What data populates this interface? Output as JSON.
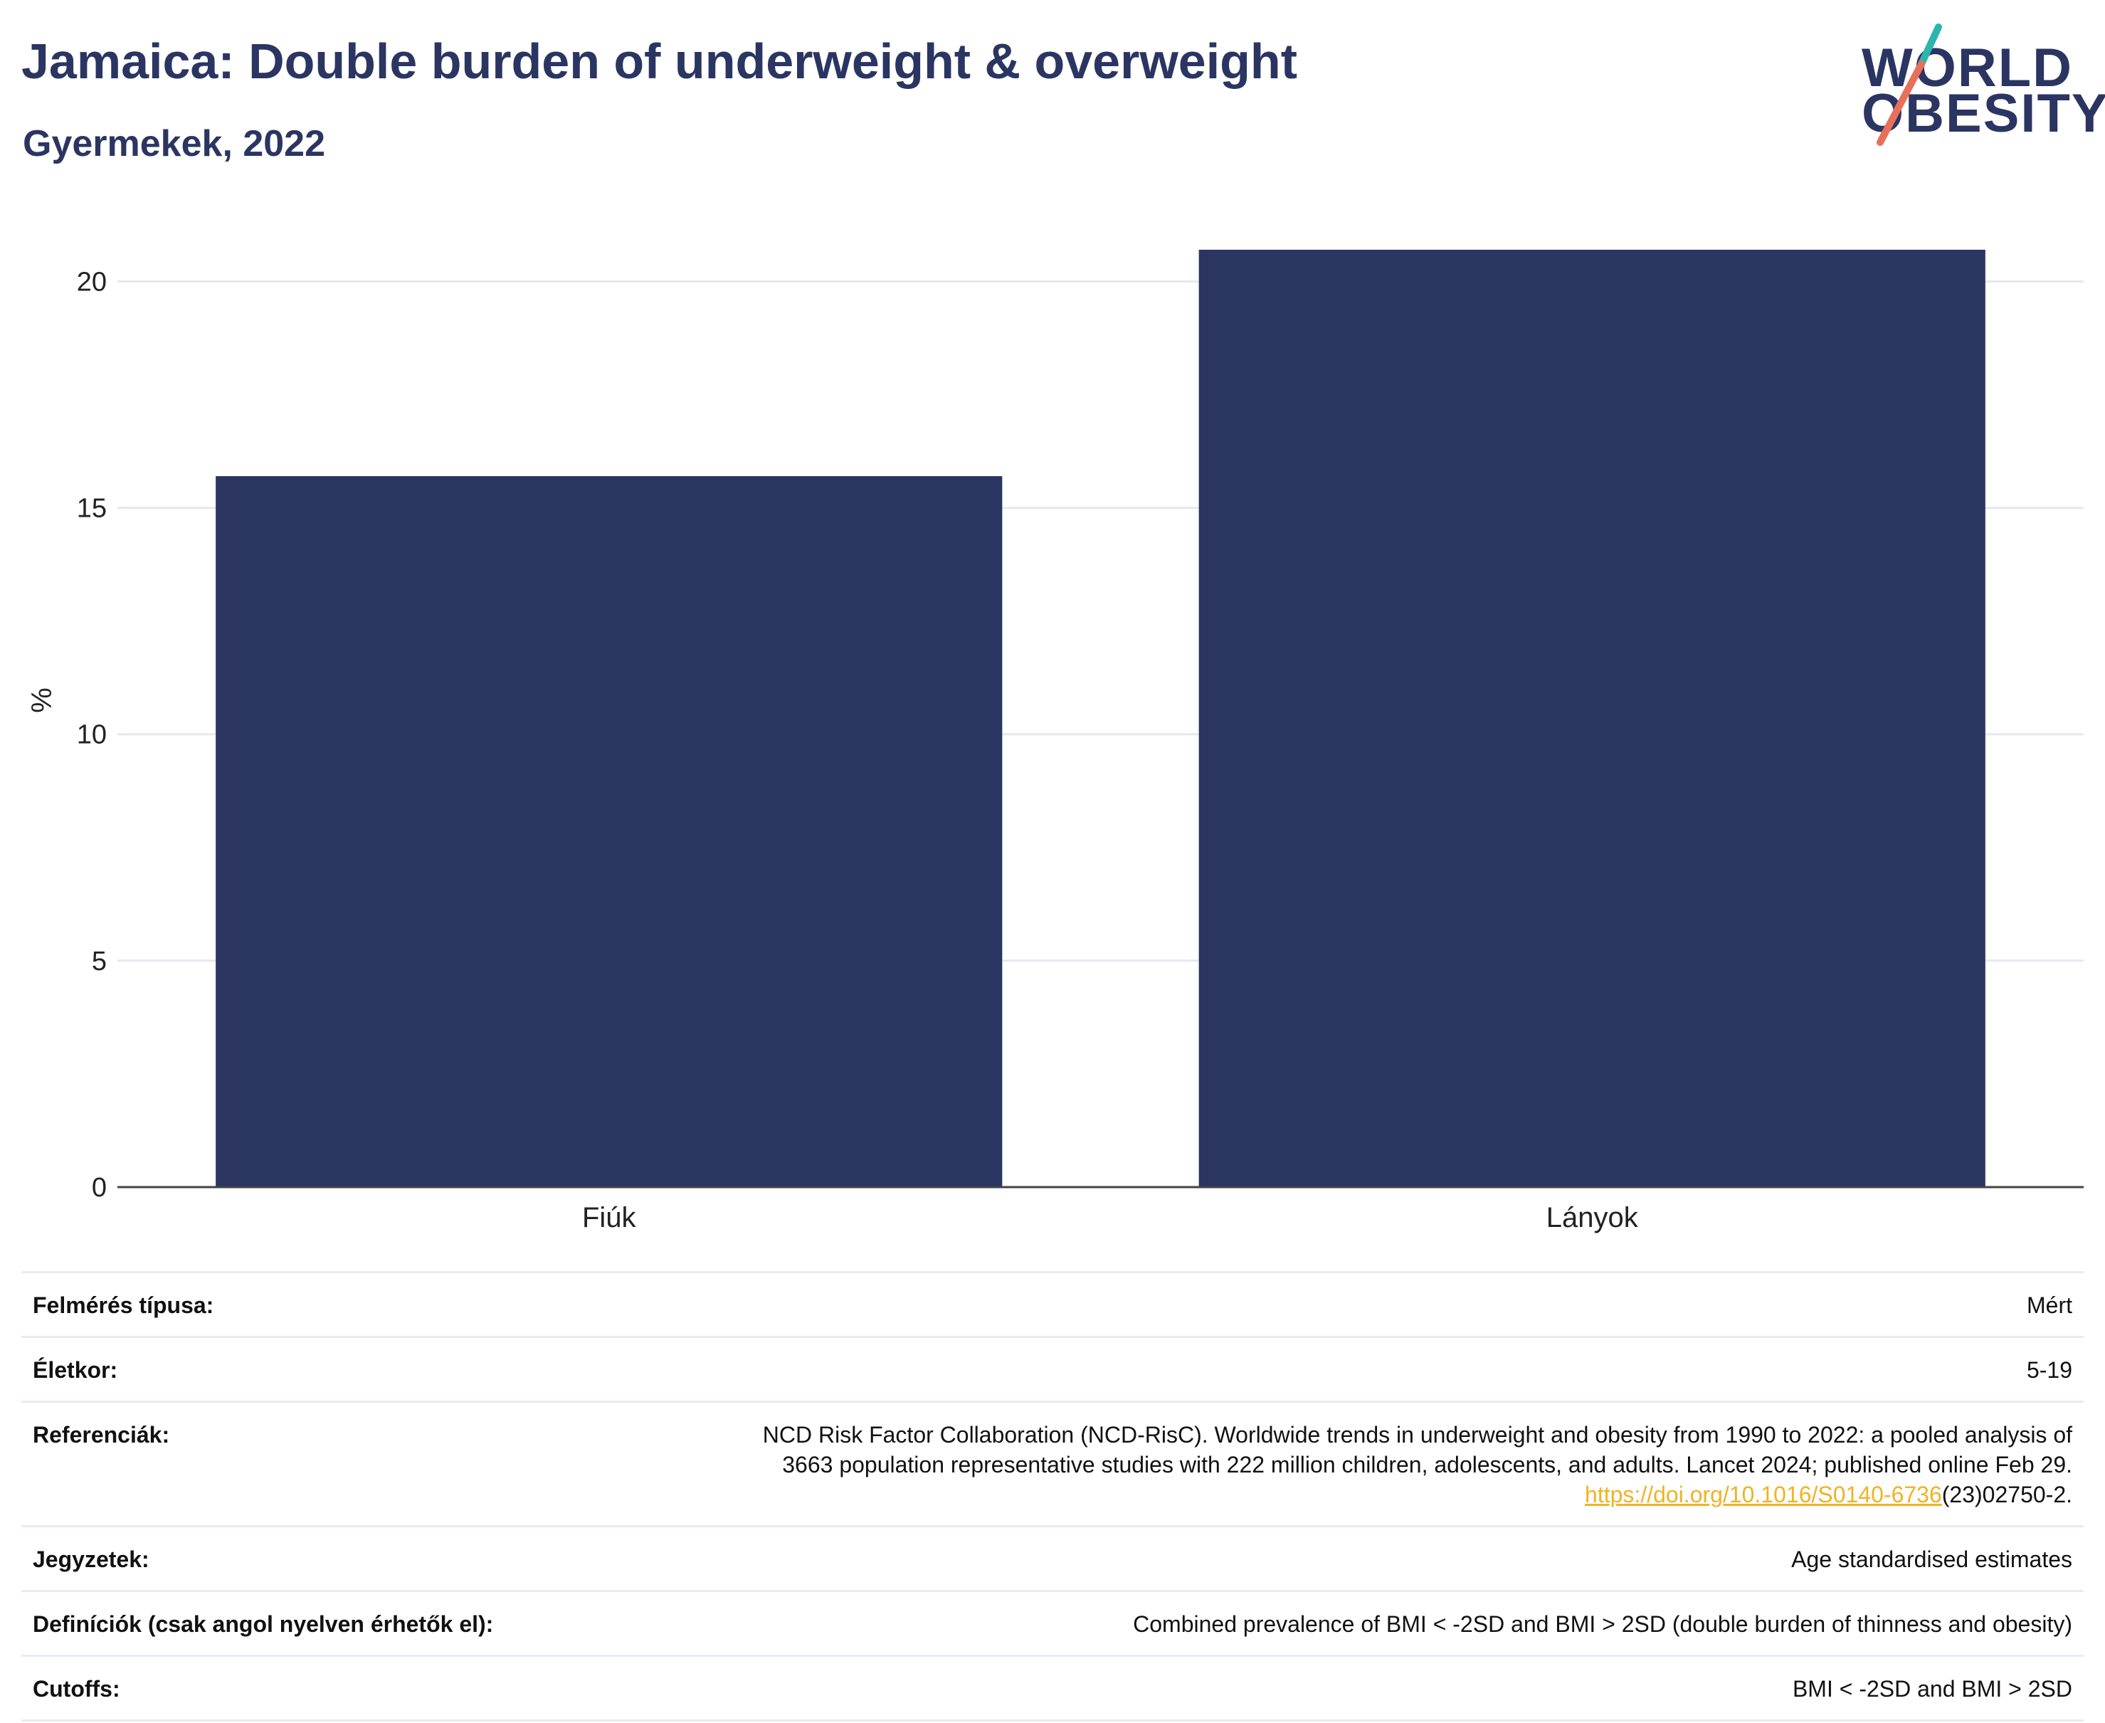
{
  "header": {
    "title": "Jamaica: Double burden of underweight & overweight",
    "subtitle": "Gyermekek, 2022"
  },
  "logo": {
    "line1": "WORLD",
    "line2": "OBESITY",
    "colors": {
      "text": "#2b3562",
      "slash_top": "#2bb5ac",
      "slash_bottom": "#e8705a"
    }
  },
  "chart_data": {
    "type": "bar",
    "categories": [
      "Fiúk",
      "Lányok"
    ],
    "values": [
      15.7,
      20.7
    ],
    "ylabel": "%",
    "ylim": [
      0,
      21.5
    ],
    "yticks": [
      0,
      5,
      10,
      15,
      20
    ],
    "grid": true,
    "bar_color": "#2b3562"
  },
  "meta": {
    "rows": [
      {
        "label": "Felmérés típusa:",
        "value": "Mért"
      },
      {
        "label": "Életkor:",
        "value": "5-19"
      },
      {
        "label": "Referenciák:",
        "value_line1": "NCD Risk Factor Collaboration (NCD-RisC). Worldwide trends in underweight and obesity from 1990 to 2022: a pooled analysis of",
        "value_line2": "3663 population representative studies with 222 million children, adolescents, and adults. Lancet 2024; published online Feb 29.",
        "link": "https://doi.org/10.1016/S0140-6736",
        "link_suffix": "(23)02750-2."
      },
      {
        "label": "Jegyzetek:",
        "value": "Age standardised estimates"
      },
      {
        "label": "Definíciók (csak angol nyelven érhetők el):",
        "value": "Combined prevalence of BMI < -2SD and BMI > 2SD (double burden of thinness and obesity)"
      },
      {
        "label": "Cutoffs:",
        "value": "BMI < -2SD and BMI > 2SD"
      }
    ]
  }
}
